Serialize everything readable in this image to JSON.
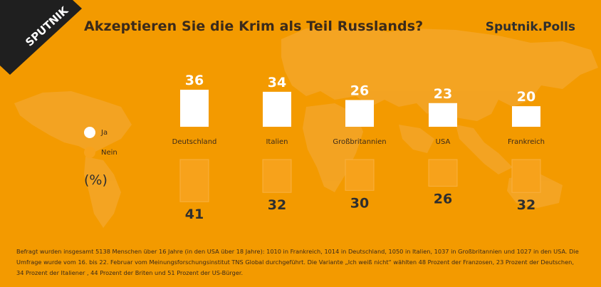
{
  "header": {
    "title": "Akzeptieren Sie die Krim als Teil Russlands?",
    "brand": "Sputnik.Polls",
    "logo_text": "SPUTNIK"
  },
  "legend": {
    "items": [
      {
        "label": "Ja",
        "color": "#ffffff"
      },
      {
        "label": "Nein",
        "color": "#f7a21b"
      }
    ]
  },
  "unit_label": "(%)",
  "colors": {
    "background": "#f39a00",
    "yes_bar": "#ffffff",
    "no_bar": "#f7a21b",
    "logo_bg": "#1f1f1f"
  },
  "chart_data": {
    "type": "bar",
    "title": "Akzeptieren Sie die Krim als Teil Russlands?",
    "categories": [
      "Deutschland",
      "Italien",
      "Großbritannien",
      "USA",
      "Frankreich"
    ],
    "series": [
      {
        "name": "Ja",
        "values": [
          36,
          34,
          26,
          23,
          20
        ]
      },
      {
        "name": "Nein",
        "values": [
          41,
          32,
          30,
          26,
          32
        ]
      }
    ],
    "unit": "(%)"
  },
  "footnote": "Befragt wurden insgesamt 5138 Menschen über 16 Jahre (in den USA über 18 Jahre): 1010 in Frankreich, 1014 in Deutschland, 1050 in Italien, 1037 in Großbritannien und 1027 in den USA. Die Umfrage wurde vom 16. bis 22. Februar vom Meinungsforschungsinstitut TNS Global durchgeführt. Die Variante „Ich weiß nicht“ wählten 48 Prozent der Franzosen, 23 Prozent der Deutschen, 34 Prozent der Italiener , 44 Prozent der Briten und 51 Prozent der US-Bürger."
}
